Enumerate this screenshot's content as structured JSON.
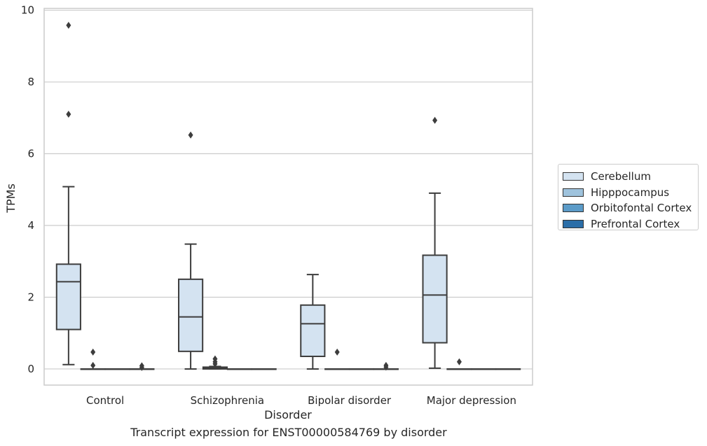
{
  "chart_data": {
    "type": "box",
    "title": "",
    "caption": "Transcript expression for ENST00000584769 by disorder",
    "xlabel": "Disorder",
    "ylabel": "TPMs",
    "ylim": [
      -0.45,
      10.05
    ],
    "yticks": [
      0,
      2,
      4,
      6,
      8,
      10
    ],
    "grid": true,
    "legend_position": "right",
    "categories": [
      "Control",
      "Schizophrenia",
      "Bipolar disorder",
      "Major depression"
    ],
    "series": [
      {
        "name": "Cerebellum",
        "color": "#d4e3f1",
        "boxes": [
          {
            "whisker_low": 0.12,
            "q1": 1.1,
            "median": 2.43,
            "q3": 2.92,
            "whisker_high": 5.08,
            "outliers": [
              7.1,
              9.58
            ]
          },
          {
            "whisker_low": 0.0,
            "q1": 0.49,
            "median": 1.45,
            "q3": 2.5,
            "whisker_high": 3.48,
            "outliers": [
              6.52
            ]
          },
          {
            "whisker_low": 0.0,
            "q1": 0.35,
            "median": 1.26,
            "q3": 1.78,
            "whisker_high": 2.63,
            "outliers": []
          },
          {
            "whisker_low": 0.02,
            "q1": 0.73,
            "median": 2.06,
            "q3": 3.17,
            "whisker_high": 4.9,
            "outliers": [
              6.93
            ]
          }
        ]
      },
      {
        "name": "Hipppocampus",
        "color": "#9fc3dd",
        "boxes": [
          {
            "whisker_low": 0.0,
            "q1": 0.0,
            "median": 0.0,
            "q3": 0.0,
            "whisker_high": 0.0,
            "outliers": [
              0.1,
              0.47
            ]
          },
          {
            "whisker_low": 0.0,
            "q1": 0.0,
            "median": 0.02,
            "q3": 0.05,
            "whisker_high": 0.07,
            "outliers": [
              0.14,
              0.2,
              0.28
            ]
          },
          {
            "whisker_low": 0.0,
            "q1": 0.0,
            "median": 0.0,
            "q3": 0.0,
            "whisker_high": 0.0,
            "outliers": [
              0.47
            ]
          },
          {
            "whisker_low": 0.0,
            "q1": 0.0,
            "median": 0.0,
            "q3": 0.0,
            "whisker_high": 0.0,
            "outliers": [
              0.2
            ]
          }
        ]
      },
      {
        "name": "Orbitofontal Cortex",
        "color": "#5b9bc8",
        "boxes": [
          {
            "whisker_low": 0.0,
            "q1": 0.0,
            "median": 0.0,
            "q3": 0.0,
            "whisker_high": 0.0,
            "outliers": []
          },
          {
            "whisker_low": 0.0,
            "q1": 0.0,
            "median": 0.0,
            "q3": 0.0,
            "whisker_high": 0.0,
            "outliers": []
          },
          {
            "whisker_low": 0.0,
            "q1": 0.0,
            "median": 0.0,
            "q3": 0.0,
            "whisker_high": 0.0,
            "outliers": []
          },
          {
            "whisker_low": 0.0,
            "q1": 0.0,
            "median": 0.0,
            "q3": 0.0,
            "whisker_high": 0.0,
            "outliers": []
          }
        ]
      },
      {
        "name": "Prefrontal Cortex",
        "color": "#2b6ea8",
        "boxes": [
          {
            "whisker_low": 0.0,
            "q1": 0.0,
            "median": 0.0,
            "q3": 0.0,
            "whisker_high": 0.0,
            "outliers": [
              0.04,
              0.09
            ]
          },
          {
            "whisker_low": 0.0,
            "q1": 0.0,
            "median": 0.0,
            "q3": 0.0,
            "whisker_high": 0.0,
            "outliers": []
          },
          {
            "whisker_low": 0.0,
            "q1": 0.0,
            "median": 0.0,
            "q3": 0.0,
            "whisker_high": 0.0,
            "outliers": [
              0.05,
              0.1
            ]
          },
          {
            "whisker_low": 0.0,
            "q1": 0.0,
            "median": 0.0,
            "q3": 0.0,
            "whisker_high": 0.0,
            "outliers": []
          }
        ]
      }
    ]
  }
}
